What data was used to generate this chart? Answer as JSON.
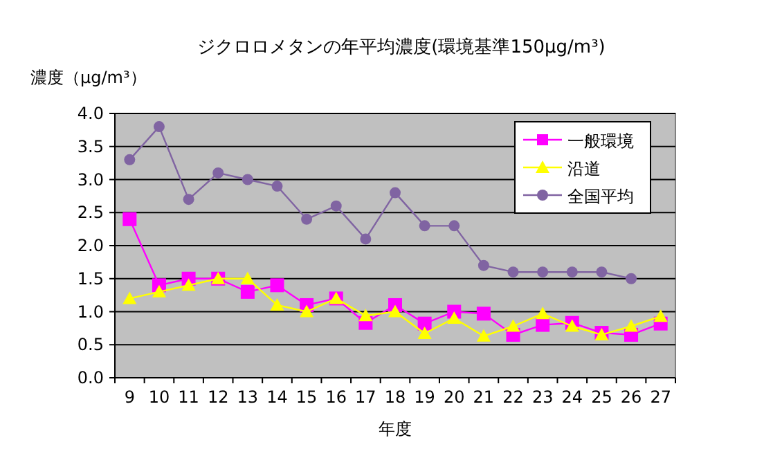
{
  "chart_data": {
    "type": "line",
    "title": "ジクロロメタンの年平均濃度(環境基準150μg/m³)",
    "ylabel": "濃度（μg/m³）",
    "xlabel": "年度",
    "categories": [
      "9",
      "10",
      "11",
      "12",
      "13",
      "14",
      "15",
      "16",
      "17",
      "18",
      "19",
      "20",
      "21",
      "22",
      "23",
      "24",
      "25",
      "26",
      "27"
    ],
    "series": [
      {
        "name": "一般環境",
        "color": "#ff00ff",
        "marker": "square",
        "values": [
          2.4,
          1.4,
          1.5,
          1.5,
          1.3,
          1.4,
          1.1,
          1.2,
          0.83,
          1.1,
          0.82,
          1.0,
          0.97,
          0.65,
          0.8,
          0.83,
          0.68,
          0.65,
          0.82
        ]
      },
      {
        "name": "沿道",
        "color": "#ffff00",
        "marker": "triangle",
        "values": [
          1.2,
          1.3,
          1.4,
          1.5,
          1.5,
          1.1,
          1.0,
          1.2,
          0.94,
          1.0,
          0.67,
          0.9,
          0.63,
          0.78,
          0.97,
          0.78,
          0.65,
          0.78,
          0.93
        ]
      },
      {
        "name": "全国平均",
        "color": "#8064a2",
        "marker": "circle",
        "values": [
          3.3,
          3.8,
          2.7,
          3.1,
          3.0,
          2.9,
          2.4,
          2.6,
          2.1,
          2.8,
          2.3,
          2.3,
          1.7,
          1.6,
          1.6,
          1.6,
          1.6,
          1.5,
          null
        ]
      }
    ],
    "ylim": [
      0,
      4
    ],
    "yticks": [
      {
        "value": 0,
        "label": "0.0"
      },
      {
        "value": 0.5,
        "label": "0.5"
      },
      {
        "value": 1,
        "label": "1.0"
      },
      {
        "value": 1.5,
        "label": "1.5"
      },
      {
        "value": 2,
        "label": "2.0"
      },
      {
        "value": 2.5,
        "label": "2.5"
      },
      {
        "value": 3,
        "label": "3.0"
      },
      {
        "value": 3.5,
        "label": "3.5"
      },
      {
        "value": 4,
        "label": "4.0"
      }
    ],
    "grid": "y",
    "legend": "top right"
  }
}
